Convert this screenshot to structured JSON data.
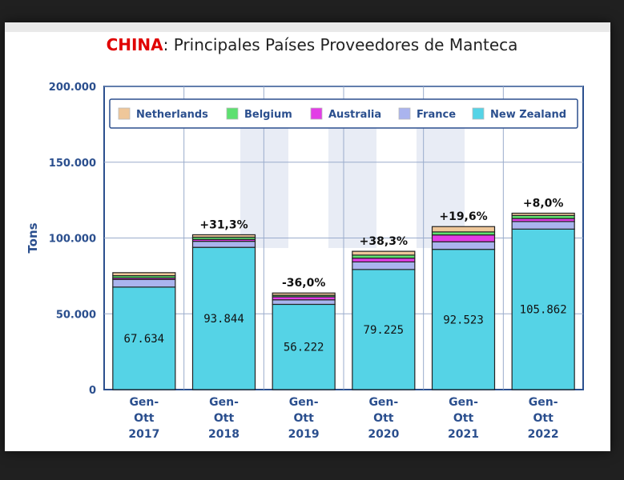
{
  "title": {
    "highlight": "CHINA",
    "rest": ": Principales Países Proveedores de Manteca"
  },
  "chart_data": {
    "type": "bar",
    "stacked": true,
    "categories": [
      [
        "Gen-",
        "Ott",
        "2017"
      ],
      [
        "Gen-",
        "Ott",
        "2018"
      ],
      [
        "Gen-",
        "Ott",
        "2019"
      ],
      [
        "Gen-",
        "Ott",
        "2020"
      ],
      [
        "Gen-",
        "Ott",
        "2021"
      ],
      [
        "Gen-",
        "Ott",
        "2022"
      ]
    ],
    "ylabel": "Tons",
    "ylim": [
      0,
      200000
    ],
    "yticks": [
      0,
      50000,
      100000,
      150000,
      200000
    ],
    "ytick_labels": [
      "0",
      "50.000",
      "100.000",
      "150.000",
      "200.000"
    ],
    "grid": true,
    "legend_position": "top",
    "series": [
      {
        "name": "New Zealand",
        "color": "#55d3e6",
        "values": [
          67634,
          93844,
          56222,
          79225,
          92523,
          105862
        ],
        "labels": [
          "67.634",
          "93.844",
          "56.222",
          "79.225",
          "92.523",
          "105.862"
        ]
      },
      {
        "name": "France",
        "color": "#aab4ee",
        "values": [
          5000,
          4000,
          3000,
          5000,
          5000,
          5000
        ]
      },
      {
        "name": "Australia",
        "color": "#e23de6",
        "values": [
          1000,
          1200,
          2000,
          2500,
          4500,
          2000
        ]
      },
      {
        "name": "Belgium",
        "color": "#5de070",
        "values": [
          1500,
          1500,
          1000,
          2000,
          2000,
          2000
        ]
      },
      {
        "name": "Netherlands",
        "color": "#efc79a",
        "values": [
          2000,
          1600,
          1500,
          2500,
          3500,
          1500
        ]
      }
    ],
    "changes": [
      "",
      "+31,3%",
      "-36,0%",
      "+38,3%",
      "+19,6%",
      "+8,0%"
    ],
    "legend_order": [
      "Netherlands",
      "Belgium",
      "Australia",
      "France",
      "New Zealand"
    ]
  }
}
